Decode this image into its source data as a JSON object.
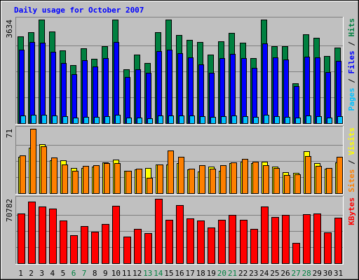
{
  "chart_data": {
    "type": "bar",
    "title": "Daily usage for October 2007",
    "categories": [
      "1",
      "2",
      "3",
      "4",
      "5",
      "6",
      "7",
      "8",
      "9",
      "10",
      "11",
      "12",
      "13",
      "14",
      "15",
      "16",
      "17",
      "18",
      "19",
      "20",
      "21",
      "22",
      "23",
      "24",
      "25",
      "26",
      "27",
      "28",
      "29",
      "30",
      "31"
    ],
    "weekend_days": [
      "6",
      "7",
      "13",
      "14",
      "20",
      "21",
      "27",
      "28"
    ],
    "panels": [
      {
        "id": "hits",
        "max_label": "3634",
        "ymax": 3634,
        "legend": [
          {
            "text": "Pages",
            "color": "#00c0ff"
          },
          {
            "text": " / ",
            "color": "#000000"
          },
          {
            "text": "Files",
            "color": "#0000ff"
          },
          {
            "text": " / ",
            "color": "#000000"
          },
          {
            "text": "Hits",
            "color": "#008040"
          }
        ],
        "series": [
          {
            "name": "Hits",
            "color": "#008040",
            "values": [
              3035,
              3195,
              3634,
              3225,
              2560,
              2045,
              2620,
              2255,
              2700,
              3634,
              1880,
              2400,
              2105,
              3190,
              3630,
              3090,
              2915,
              2860,
              2405,
              2875,
              3165,
              2830,
              2280,
              3634,
              2710,
              2700,
              1400,
              3110,
              2990,
              2365,
              2650
            ]
          },
          {
            "name": "Files",
            "color": "#0000ff",
            "values": [
              2575,
              2845,
              2830,
              2515,
              2100,
              1720,
              2200,
              1980,
              2285,
              2845,
              1630,
              1880,
              1770,
              2530,
              2585,
              2460,
              2310,
              2070,
              1760,
              2290,
              2425,
              2290,
              1950,
              2800,
              2320,
              2240,
              1295,
              2340,
              2310,
              1800,
              2180
            ]
          },
          {
            "name": "Pages",
            "color": "#00c0ff",
            "values": [
              275,
              285,
              295,
              280,
              245,
              195,
              215,
              215,
              235,
              290,
              190,
              195,
              175,
              270,
              275,
              270,
              270,
              250,
              225,
              250,
              260,
              245,
              225,
              300,
              245,
              225,
              190,
              270,
              250,
              185,
              250
            ]
          }
        ]
      },
      {
        "id": "visits",
        "max_label": "71",
        "ymax": 71,
        "legend": [
          {
            "text": "Sites",
            "color": "#ff8000"
          },
          {
            "text": " / ",
            "color": "#000000"
          },
          {
            "text": "Visits",
            "color": "#ffff00"
          }
        ],
        "series": [
          {
            "name": "Visits",
            "color": "#ffff00",
            "values": [
              40,
              50,
              54,
              36,
              36,
              28,
              28,
              29,
              34,
              37,
              25,
              26,
              28,
              32,
              32,
              33,
              26,
              24,
              29,
              25,
              33,
              35,
              33,
              35,
              29,
              23,
              22,
              46,
              33,
              27,
              34
            ]
          },
          {
            "name": "Sites",
            "color": "#ff8000",
            "values": [
              42,
              71,
              52,
              39,
              32,
              25,
              30,
              31,
              33,
              33,
              25,
              27,
              17,
              32,
              47,
              40,
              27,
              31,
              27,
              31,
              34,
              38,
              35,
              31,
              28,
              20,
              21,
              41,
              30,
              28,
              40
            ]
          }
        ]
      },
      {
        "id": "kbytes",
        "max_label": "70782",
        "ymax": 70782,
        "legend": [
          {
            "text": "KBytes",
            "color": "#ff0000"
          }
        ],
        "series": [
          {
            "name": "KBytes",
            "color": "#ff0000",
            "values": [
              55000,
              67500,
              62000,
              60000,
              47000,
              31000,
              41000,
              35000,
              43000,
              63000,
              29500,
              38000,
              33000,
              70782,
              48000,
              64000,
              49000,
              47000,
              39000,
              48000,
              53000,
              48000,
              38000,
              62000,
              51000,
              53000,
              22000,
              54000,
              55000,
              34000,
              50000
            ]
          }
        ]
      }
    ]
  }
}
